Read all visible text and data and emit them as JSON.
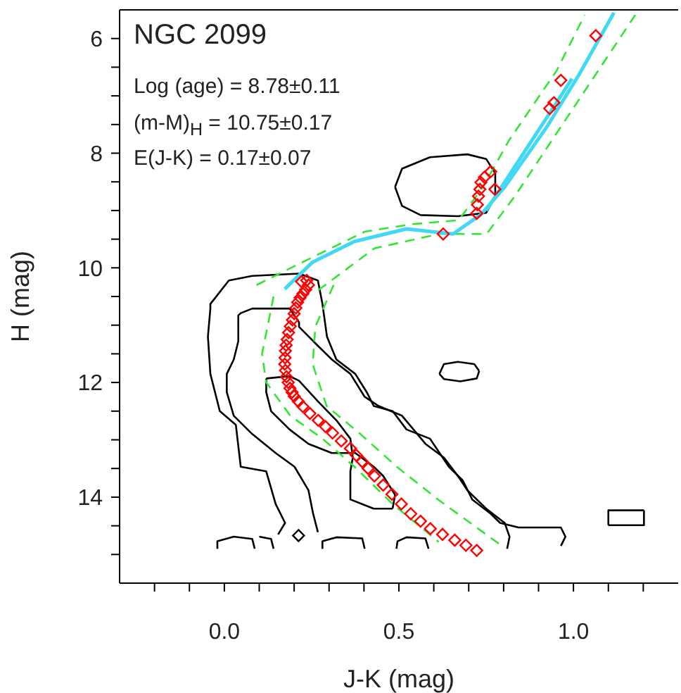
{
  "chart_data": {
    "type": "line",
    "title": "NGC 2099",
    "xlabel": "J-K (mag)",
    "ylabel": "H (mag)",
    "annotations": [
      "Log (age) = 8.78±0.11",
      "(m-M)$_{H}$ = 10.75±0.17",
      "E(J-K) = 0.17±0.07"
    ],
    "xlim": [
      -0.3,
      1.3
    ],
    "xticks": [
      {
        "value": -0.2,
        "label": null
      },
      {
        "value": -0.1,
        "label": null
      },
      {
        "value": 0,
        "label": "0.0"
      },
      {
        "value": 0.1,
        "label": null
      },
      {
        "value": 0.2,
        "label": null
      },
      {
        "value": 0.3,
        "label": null
      },
      {
        "value": 0.4,
        "label": null
      },
      {
        "value": 0.5,
        "label": "0.5"
      },
      {
        "value": 0.6,
        "label": null
      },
      {
        "value": 0.7,
        "label": null
      },
      {
        "value": 0.8,
        "label": null
      },
      {
        "value": 0.9,
        "label": null
      },
      {
        "value": 1,
        "label": "1.0"
      },
      {
        "value": 1.1,
        "label": null
      },
      {
        "value": 1.2,
        "label": null
      }
    ],
    "ylim": [
      15.5,
      5.5
    ],
    "yticks": [
      6,
      {
        "value": 6.5,
        "label": null
      },
      {
        "value": 7,
        "label": null
      },
      {
        "value": 7.5,
        "label": null
      },
      8,
      {
        "value": 8.5,
        "label": null
      },
      {
        "value": 9,
        "label": null
      },
      {
        "value": 9.5,
        "label": null
      },
      10,
      {
        "value": 10.5,
        "label": null
      },
      {
        "value": 11,
        "label": null
      },
      {
        "value": 11.5,
        "label": null
      },
      12,
      {
        "value": 12.5,
        "label": null
      },
      {
        "value": 13,
        "label": null
      },
      {
        "value": 13.5,
        "label": null
      },
      14,
      {
        "value": 14.5,
        "label": null
      },
      {
        "value": 15,
        "label": null
      }
    ],
    "series": [
      {
        "color": "#000000",
        "line_style": "solid",
        "x": [
          0.154,
          0.174,
          0.147,
          0.12,
          0.047,
          0.033,
          -0.013,
          -0.04,
          -0.047,
          -0.04,
          -0.04,
          0.013,
          0.08,
          0.214,
          0.268,
          0.281,
          0.294,
          0.321,
          0.375,
          0.408,
          0.428,
          0.482,
          0.522,
          0.589,
          0.643,
          0.683,
          0.71,
          0.763,
          0.79,
          0.843,
          0.964,
          0.977,
          0.964
        ],
        "values": [
          14.65,
          14.45,
          14.12,
          13.55,
          13.47,
          12.74,
          12.5,
          11.85,
          11.2,
          10.71,
          10.63,
          10.22,
          10.14,
          10.1,
          10.22,
          10.63,
          11.2,
          11.6,
          11.85,
          12.17,
          12.41,
          12.5,
          12.82,
          12.98,
          13.47,
          13.71,
          14.04,
          14.29,
          14.45,
          14.53,
          14.53,
          14.69,
          14.85
        ]
      },
      {
        "color": "#000000",
        "line_style": "solid",
        "x": [
          0.268,
          0.254,
          0.241,
          0.201,
          0.147,
          0.08,
          0.027,
          0.007,
          0.007,
          0.027,
          0.04,
          0.04,
          0.047,
          0.08,
          0.187,
          0.214,
          0.214,
          0.268,
          0.308,
          0.361,
          0.402,
          0.442,
          0.509,
          0.576,
          0.629,
          0.669,
          0.696,
          0.75,
          0.803,
          0.817,
          0.81
        ],
        "values": [
          14.61,
          14.28,
          13.88,
          13.47,
          13.23,
          12.9,
          12.58,
          12.17,
          11.85,
          11.6,
          11.28,
          10.83,
          10.79,
          10.71,
          10.71,
          10.95,
          11.03,
          11.36,
          11.6,
          11.85,
          12.25,
          12.41,
          12.58,
          13.07,
          13.31,
          13.63,
          13.88,
          14.2,
          14.45,
          14.69,
          14.9
        ]
      },
      {
        "color": "#000000",
        "line_style": "solid",
        "x": [
          0.12,
          0.187,
          0.214,
          0.268,
          0.321,
          0.361,
          0.368,
          0.361,
          0.361,
          0.428,
          0.482
        ],
        "values": [
          11.93,
          11.89,
          11.97,
          12.33,
          12.66,
          12.98,
          13.31,
          13.55,
          14.04,
          14.2,
          14.2
        ]
      },
      {
        "color": "#000000",
        "line_style": "solid",
        "x": [
          0.482,
          0.489,
          0.455,
          0.428,
          0.375,
          0.308,
          0.241,
          0.187,
          0.134,
          0.12,
          0.12
        ],
        "values": [
          14.2,
          13.96,
          13.63,
          13.47,
          13.23,
          13.23,
          13.07,
          12.82,
          12.5,
          12.17,
          11.93
        ]
      },
      {
        "color": "#000000",
        "line_style": "solid",
        "x": [
          0.489,
          0.509,
          0.589,
          0.696,
          0.75,
          0.776,
          0.776
        ],
        "values": [
          8.59,
          8.27,
          8.07,
          8.02,
          8.1,
          8.35,
          8.76
        ]
      },
      {
        "color": "#000000",
        "line_style": "solid",
        "x": [
          0.776,
          0.75,
          0.669,
          0.562,
          0.509,
          0.489
        ],
        "values": [
          8.76,
          9.04,
          9.1,
          9.08,
          8.92,
          8.59
        ]
      },
      {
        "color": "#000000",
        "line_style": "solid",
        "x": [
          0.616,
          0.629,
          0.669,
          0.716,
          0.73
        ],
        "values": [
          11.85,
          11.68,
          11.64,
          11.68,
          11.8
        ]
      },
      {
        "color": "#000000",
        "line_style": "solid",
        "x": [
          0.73,
          0.723,
          0.676,
          0.629,
          0.616
        ],
        "values": [
          11.8,
          11.93,
          11.98,
          11.94,
          11.85
        ]
      },
      {
        "color": "#000000",
        "line_style": "solid",
        "x": [
          1.1,
          1.1,
          1.202
        ],
        "values": [
          14.49,
          14.23,
          14.23
        ]
      },
      {
        "color": "#000000",
        "line_style": "solid",
        "x": [
          1.202,
          1.202,
          1.1
        ],
        "values": [
          14.23,
          14.49,
          14.49
        ]
      },
      {
        "color": "#000000",
        "line_style": "solid",
        "x": [
          -0.02,
          -0.02,
          0.027,
          0.08,
          0.087,
          0.093,
          0.1,
          0.134,
          0.141,
          0.26,
          0.281,
          0.281,
          0.321,
          0.395,
          0.402,
          0.45,
          0.493,
          0.496,
          0.522,
          0.576,
          0.585
        ],
        "values": [
          14.9,
          14.77,
          14.69,
          14.73,
          14.9,
          null,
          14.69,
          14.73,
          14.9,
          null,
          14.9,
          14.77,
          14.7,
          14.72,
          14.9,
          null,
          14.9,
          14.77,
          14.7,
          14.72,
          14.9
        ]
      },
      {
        "color": "#33e633",
        "line_style": "dashed",
        "x": [
          0.141,
          0.108,
          0.12,
          0.189,
          0.281,
          0.373,
          0.482,
          0.614
        ],
        "values": [
          10.5,
          11.5,
          12.0,
          12.58,
          12.98,
          13.47,
          14.12,
          14.78
        ]
      },
      {
        "color": "#33e633",
        "line_style": "dashed",
        "x": [
          0.313,
          0.261,
          0.253,
          0.293,
          0.39,
          0.494,
          0.614,
          0.795
        ],
        "values": [
          10.3,
          11.02,
          11.68,
          12.41,
          12.9,
          13.47,
          14.05,
          14.85
        ]
      },
      {
        "color": "#33e633",
        "line_style": "dashed",
        "x": [
          0.092,
          0.241,
          0.402,
          0.534,
          0.671,
          0.74,
          0.815,
          0.952,
          1.032
        ],
        "values": [
          10.3,
          9.85,
          9.37,
          9.24,
          9.17,
          8.6,
          7.78,
          6.56,
          5.59
        ]
      },
      {
        "color": "#33e633",
        "line_style": "dashed",
        "x": [
          0.269,
          0.43,
          0.614,
          0.751,
          0.831,
          0.964,
          1.177
        ],
        "values": [
          10.39,
          9.66,
          9.41,
          9.41,
          8.76,
          7.54,
          5.59
        ]
      },
      {
        "color": "#40d8f5",
        "line_style": "solid",
        "x": [
          0.173,
          0.253,
          0.373,
          0.522,
          0.655,
          0.735,
          0.803,
          0.924,
          1.016,
          1.116
        ],
        "values": [
          10.37,
          9.9,
          9.54,
          9.32,
          9.41,
          9.07,
          8.59,
          7.54,
          6.63,
          5.55
        ]
      },
      {
        "color": "#40d8f5",
        "line_style": "solid",
        "x": [
          0.75,
          0.855,
          0.996
        ],
        "values": [
          9.0,
          8.02,
          6.7
        ]
      },
      {
        "type": "scatter",
        "color": "#000000",
        "marker": "diamond",
        "x": [
          0.2125
        ],
        "values": [
          14.67
        ]
      },
      {
        "type": "scatter",
        "color": "#ff0000",
        "marker": "diamond",
        "x": [
          0.241,
          0.233,
          0.225,
          0.217,
          0.21,
          0.205,
          0.2,
          0.195,
          0.189,
          0.184,
          0.18,
          0.177,
          0.175,
          0.174,
          0.173,
          0.175,
          0.178,
          0.183,
          0.188,
          0.194,
          0.2,
          0.212,
          0.225,
          0.245,
          0.269,
          0.29,
          0.31,
          0.335,
          0.361,
          0.378,
          0.395,
          0.412,
          0.43,
          0.455,
          0.48,
          0.507,
          0.534,
          0.562,
          0.59,
          0.625,
          0.66,
          0.692,
          0.723,
          0.723,
          0.725,
          0.728,
          0.732,
          0.735,
          0.745,
          0.763,
          0.221,
          0.236,
          0.627,
          0.775,
          0.932,
          0.944,
          0.964,
          1.064
        ],
        "values": [
          10.3,
          10.38,
          10.45,
          10.52,
          10.6,
          10.7,
          10.8,
          10.91,
          11.02,
          11.13,
          11.25,
          11.35,
          11.45,
          11.57,
          11.68,
          11.79,
          11.9,
          12.0,
          12.1,
          12.17,
          12.24,
          12.33,
          12.42,
          12.54,
          12.66,
          12.77,
          12.88,
          13.02,
          13.15,
          13.27,
          13.38,
          13.5,
          13.63,
          13.79,
          13.95,
          14.12,
          14.29,
          14.42,
          14.55,
          14.65,
          14.75,
          14.84,
          14.93,
          9.05,
          8.9,
          8.75,
          8.63,
          8.51,
          8.42,
          8.32,
          10.24,
          10.22,
          9.41,
          8.63,
          7.22,
          7.12,
          6.73,
          5.95
        ]
      }
    ]
  }
}
